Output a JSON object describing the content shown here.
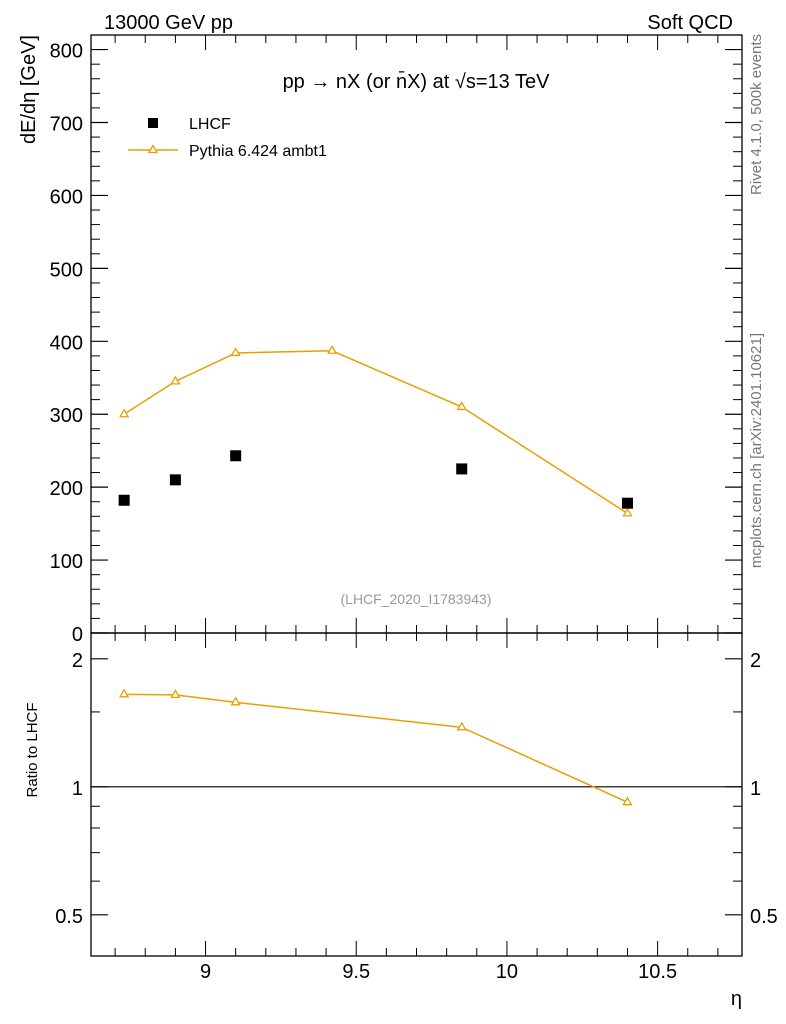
{
  "header": {
    "left": "13000 GeV pp",
    "right": "Soft QCD"
  },
  "side_labels": {
    "rivet": "Rivet 4.1.0,  500k events",
    "mcplots": "mcplots.cern.ch [arXiv:2401.10621]"
  },
  "chart_data": [
    {
      "type": "scatter",
      "title": "pp → nX (or n̄X) at √s=13 TeV",
      "analysis_tag": "(LHCF_2020_I1783943)",
      "xlabel": "",
      "ylabel": "dE/dη [GeV]",
      "xlim": [
        8.62,
        10.78
      ],
      "ylim": [
        0,
        820
      ],
      "yticks": [
        0,
        100,
        200,
        300,
        400,
        500,
        600,
        700,
        800
      ],
      "ytick_labels": [
        "0",
        "100",
        "200",
        "300",
        "400",
        "500",
        "600",
        "700",
        "800"
      ],
      "legend_position": "top-left",
      "series": [
        {
          "name": "LHCF",
          "style": "markers",
          "marker": "square",
          "color": "#000000",
          "x": [
            8.73,
            8.9,
            9.1,
            9.85,
            10.4
          ],
          "values": [
            182,
            210,
            243,
            225,
            178
          ]
        },
        {
          "name": "Pythia 6.424 ambt1",
          "style": "line",
          "marker": "triangle",
          "color": "#e8a000",
          "x": [
            8.73,
            8.9,
            9.1,
            9.42,
            9.85,
            10.4
          ],
          "values": [
            300,
            345,
            384,
            387,
            310,
            164
          ]
        }
      ]
    },
    {
      "type": "line",
      "xlabel": "η",
      "ylabel": "Ratio to LHCF",
      "scale": "log",
      "xlim": [
        8.62,
        10.78
      ],
      "ylim": [
        0.4,
        2.3
      ],
      "reference_line": 1,
      "xticks": [
        9,
        9.5,
        10,
        10.5
      ],
      "xtick_labels": [
        "9",
        "9.5",
        "10",
        "10.5"
      ],
      "yticks": [
        0.5,
        1,
        2
      ],
      "ytick_labels": [
        "0.5",
        "1",
        "2"
      ],
      "series": [
        {
          "name": "Pythia 6.424 ambt1 / LHCF",
          "color": "#e8a000",
          "marker": "triangle",
          "x": [
            8.73,
            8.9,
            9.1,
            9.85,
            10.4
          ],
          "values": [
            1.65,
            1.645,
            1.58,
            1.38,
            0.92
          ]
        }
      ]
    }
  ]
}
